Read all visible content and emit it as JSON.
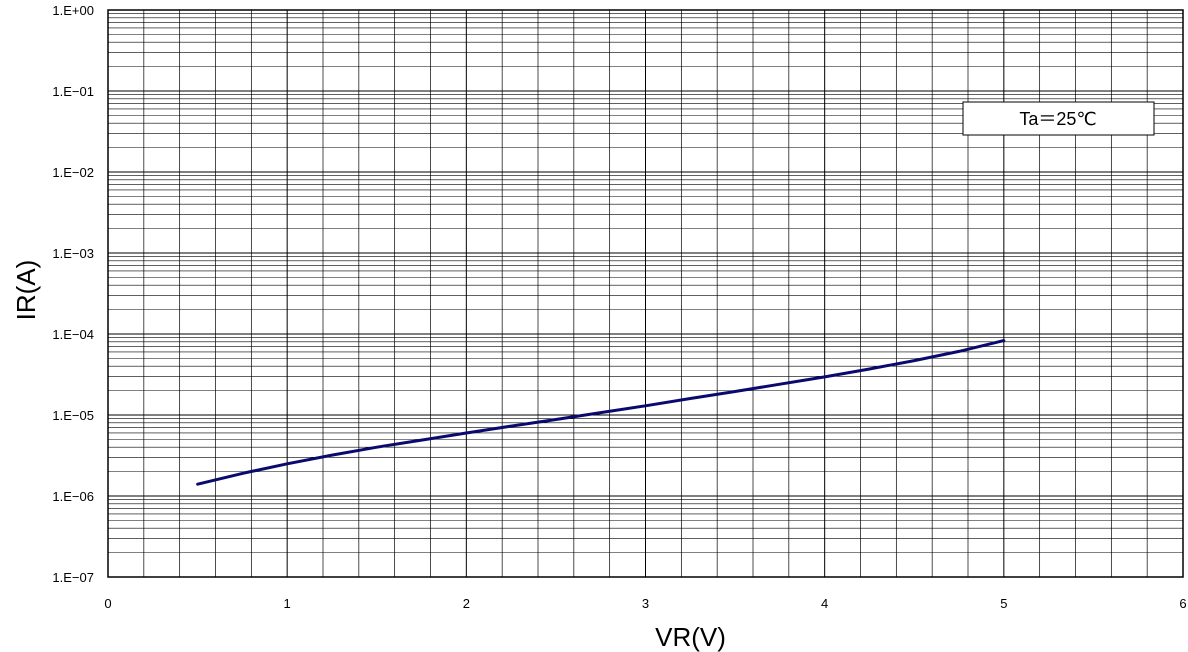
{
  "chart_data": {
    "type": "line",
    "title": "",
    "xlabel": "VR(V)",
    "ylabel": "IR(A)",
    "xlim": [
      0,
      6
    ],
    "ylim": [
      1e-07,
      1
    ],
    "y_scale": "log",
    "grid": true,
    "x_ticks": [
      0,
      1,
      2,
      3,
      4,
      5,
      6
    ],
    "x_tick_labels": [
      "0",
      "1",
      "2",
      "3",
      "4",
      "5",
      "6"
    ],
    "y_ticks": [
      1e-07,
      1e-06,
      1e-05,
      0.0001,
      0.001,
      0.01,
      0.1,
      1
    ],
    "y_tick_labels": [
      "1.E−07",
      "1.E−06",
      "1.E−05",
      "1.E−04",
      "1.E−03",
      "1.E−02",
      "1.E−01",
      "1.E+00"
    ],
    "annotation": "Ta＝25℃",
    "series": [
      {
        "color": "#0a0a6e",
        "x": [
          0.5,
          0.75,
          1.0,
          1.25,
          1.5,
          1.75,
          2.0,
          2.25,
          2.5,
          2.75,
          3.0,
          3.25,
          3.5,
          3.75,
          4.0,
          4.25,
          4.5,
          4.75,
          5.0
        ],
        "y": [
          1.4e-06,
          1.9e-06,
          2.5e-06,
          3.2e-06,
          4e-06,
          4.9e-06,
          6e-06,
          7.3e-06,
          8.8e-06,
          1.07e-05,
          1.3e-05,
          1.6e-05,
          1.95e-05,
          2.4e-05,
          2.95e-05,
          3.7e-05,
          4.7e-05,
          6.1e-05,
          8.3e-05
        ]
      }
    ]
  }
}
